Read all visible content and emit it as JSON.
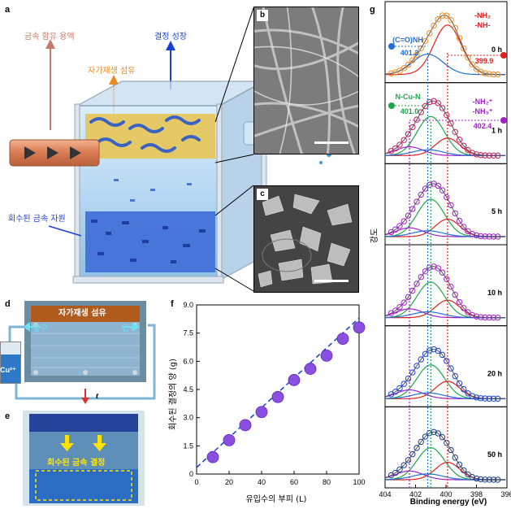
{
  "panels": {
    "a": "a",
    "b": "b",
    "c": "c",
    "d": "d",
    "e": "e",
    "f": "f",
    "g": "g"
  },
  "panel_a": {
    "label_metal_solution": "금속 함유 용액",
    "label_self_healing_fiber": "자가재생 섬유",
    "label_crystal_growth": "결정 성장",
    "label_recovered_metal": "회수된 금속 자원"
  },
  "panel_d": {
    "fiber_label": "자가재생 섬유",
    "outlet": "출구",
    "inlet": "입구",
    "ion": "Cu²⁺",
    "time_symbol": "t"
  },
  "panel_e": {
    "crystal_label": "회수된 금속 결정"
  },
  "colors": {
    "blue_arrow": "#1a3fd6",
    "orange_arrow": "#f08a1c",
    "salmon_arrow": "#c97b6a",
    "purple_marker": "#8a4fe0",
    "red": "#e0201c",
    "green": "#1fa64a",
    "violet": "#a020c8"
  },
  "chart_data": [
    {
      "type": "scatter",
      "panel": "f",
      "xlabel": "유입수의 부피 (L)",
      "ylabel": "회수된 결정의 양 (g)",
      "xlim": [
        0,
        100
      ],
      "ylim": [
        0,
        9.0
      ],
      "xticks": [
        "0",
        "20",
        "40",
        "60",
        "80",
        "100"
      ],
      "yticks": [
        "0",
        "1.5",
        "3.0",
        "4.5",
        "6.0",
        "7.5",
        "9.0"
      ],
      "x": [
        10,
        20,
        30,
        40,
        50,
        60,
        70,
        80,
        90,
        100
      ],
      "y": [
        0.9,
        1.8,
        2.6,
        3.3,
        4.1,
        5.0,
        5.6,
        6.3,
        7.2,
        7.8
      ],
      "fit_line": [
        [
          0,
          0.35
        ],
        [
          100,
          8.3
        ]
      ],
      "grid": false
    },
    {
      "type": "line",
      "panel": "g",
      "xlabel": "Binding energy (eV)",
      "ylabel": "강도",
      "xlim": [
        404,
        396
      ],
      "xticks": [
        "404",
        "402",
        "400",
        "398",
        "396"
      ],
      "spectra": [
        "0 h",
        "1 h",
        "5 h",
        "10 h",
        "20 h",
        "50 h"
      ],
      "annotations": {
        "nh2_label": "-NH₂",
        "nh_label": "-NH-",
        "nh_value": "399.9",
        "coonh_label": "(C=O)NH",
        "coonh_value": "401.2",
        "ncun_label": "N-Cu-N",
        "ncun_value": "401.0",
        "nh3_label_1": "-NH₂⁺",
        "nh3_label_2": "-NH₃⁺",
        "nh3_value": "402.4"
      },
      "reference_lines_ev": [
        402.4,
        401.2,
        401.0,
        399.9
      ]
    }
  ]
}
